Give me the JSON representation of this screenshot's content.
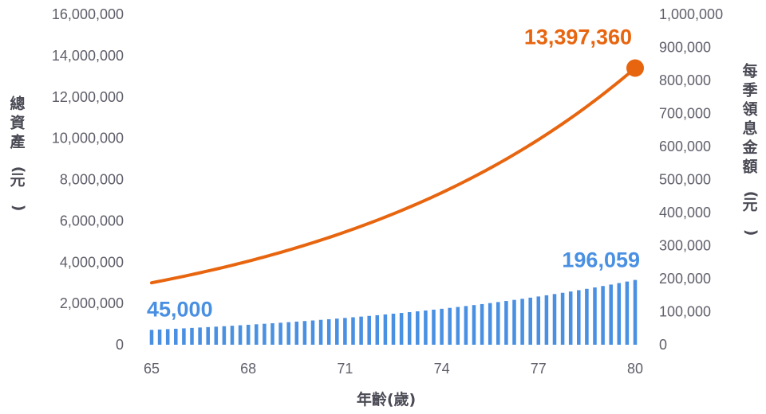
{
  "chart_data": {
    "type": "bar+line",
    "xlabel": "年齡(歲)",
    "ylabel_left": "總資產(元)",
    "ylabel_right": "每季領息金額(元)",
    "x_ticks": [
      "65",
      "68",
      "71",
      "74",
      "77",
      "80"
    ],
    "x_range": [
      65,
      80
    ],
    "left_ticks": [
      "0",
      "2,000,000",
      "4,000,000",
      "6,000,000",
      "8,000,000",
      "10,000,000",
      "12,000,000",
      "14,000,000",
      "16,000,000"
    ],
    "left_ylim": [
      0,
      16000000
    ],
    "right_ticks": [
      "0",
      "100,000",
      "200,000",
      "300,000",
      "400,000",
      "500,000",
      "600,000",
      "700,000",
      "800,000",
      "900,000",
      "1,000,000"
    ],
    "right_ylim": [
      0,
      1000000
    ],
    "colors": {
      "line": "#e8650f",
      "bars": "#4a90e2"
    },
    "line_series": {
      "axis": "left",
      "start": {
        "x": 65,
        "y": 3000000
      },
      "end": {
        "x": 80,
        "y": 13397360
      },
      "end_label": "13,397,360"
    },
    "bar_series": {
      "axis": "right",
      "count": 61,
      "start_value": 45000,
      "end_value": 196059,
      "start_label": "45,000",
      "end_label": "196,059"
    }
  }
}
